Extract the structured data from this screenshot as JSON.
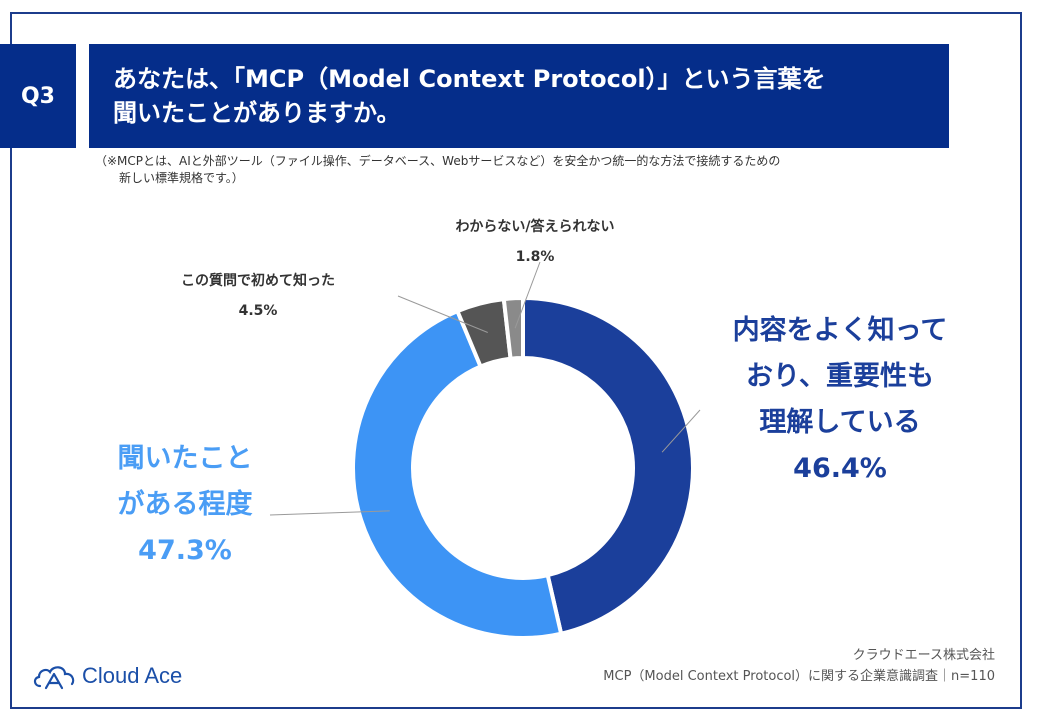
{
  "question": {
    "badge": "Q3",
    "title_line1": "あなたは、「MCP（Model Context Protocol）」という言葉を",
    "title_line2": "聞いたことがありますか。"
  },
  "note": {
    "line1": "（※MCPとは、AIと外部ツール（ファイル操作、データベース、Webサービスなど）を安全かつ統一的な方法で接続するための",
    "line2": "新しい標準規格です。）"
  },
  "chart_data": {
    "type": "pie",
    "variant": "donut",
    "start": "top",
    "direction": "clockwise",
    "slices": [
      {
        "label_lines": [
          "内容をよく知って",
          "おり、重要性も",
          "理解している"
        ],
        "value": 46.4,
        "display": "46.4%",
        "color": "#1b3f9b"
      },
      {
        "label_lines": [
          "聞いたこと",
          "がある程度"
        ],
        "value": 47.3,
        "display": "47.3%",
        "color": "#3d94f5"
      },
      {
        "label_lines": [
          "この質問で初めて知った"
        ],
        "value": 4.5,
        "display": "4.5%",
        "color": "#555555"
      },
      {
        "label_lines": [
          "わからない/答えられない"
        ],
        "value": 1.8,
        "display": "1.8%",
        "color": "#8a8a8a"
      }
    ]
  },
  "footer": {
    "company": "クラウドエース株式会社",
    "survey": "MCP（Model Context Protocol）に関する企業意識調査｜n=110"
  },
  "logo": {
    "text": "Cloud Ace"
  },
  "colors": {
    "header_bg": "#052d8a",
    "frame": "#1c3c8c",
    "dark_label": "#1b3f9b",
    "light_label": "#4a9df5"
  }
}
